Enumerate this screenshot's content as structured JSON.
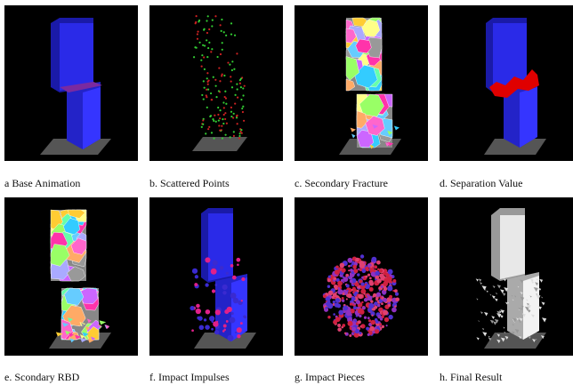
{
  "panels": [
    {
      "caption": "a Base Animation"
    },
    {
      "caption": "b. Scattered Points"
    },
    {
      "caption": "c. Secondary Fracture"
    },
    {
      "caption": "d. Separation Value"
    },
    {
      "caption": "e. Scondary RBD"
    },
    {
      "caption": "f. Impact Impulses"
    },
    {
      "caption": "g. Impact Pieces"
    },
    {
      "caption": "h. Final Result"
    }
  ]
}
